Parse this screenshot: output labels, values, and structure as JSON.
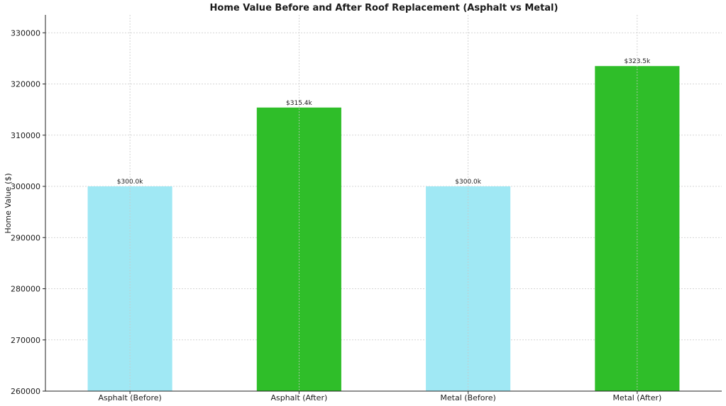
{
  "chart_data": {
    "type": "bar",
    "title": "Home Value Before and After Roof Replacement (Asphalt vs Metal)",
    "xlabel": "",
    "ylabel": "Home Value ($)",
    "categories": [
      "Asphalt (Before)",
      "Asphalt (After)",
      "Metal (Before)",
      "Metal (After)"
    ],
    "values": [
      300000,
      315400,
      300000,
      323500
    ],
    "data_labels": [
      "$300.0k",
      "$315.4k",
      "$300.0k",
      "$323.5k"
    ],
    "colors": [
      "#a0e8f4",
      "#2fbe29",
      "#a0e8f4",
      "#2fbe29"
    ],
    "ylim": [
      260000,
      333500
    ],
    "yticks": [
      260000,
      270000,
      280000,
      290000,
      300000,
      310000,
      320000,
      330000
    ],
    "grid": true
  }
}
